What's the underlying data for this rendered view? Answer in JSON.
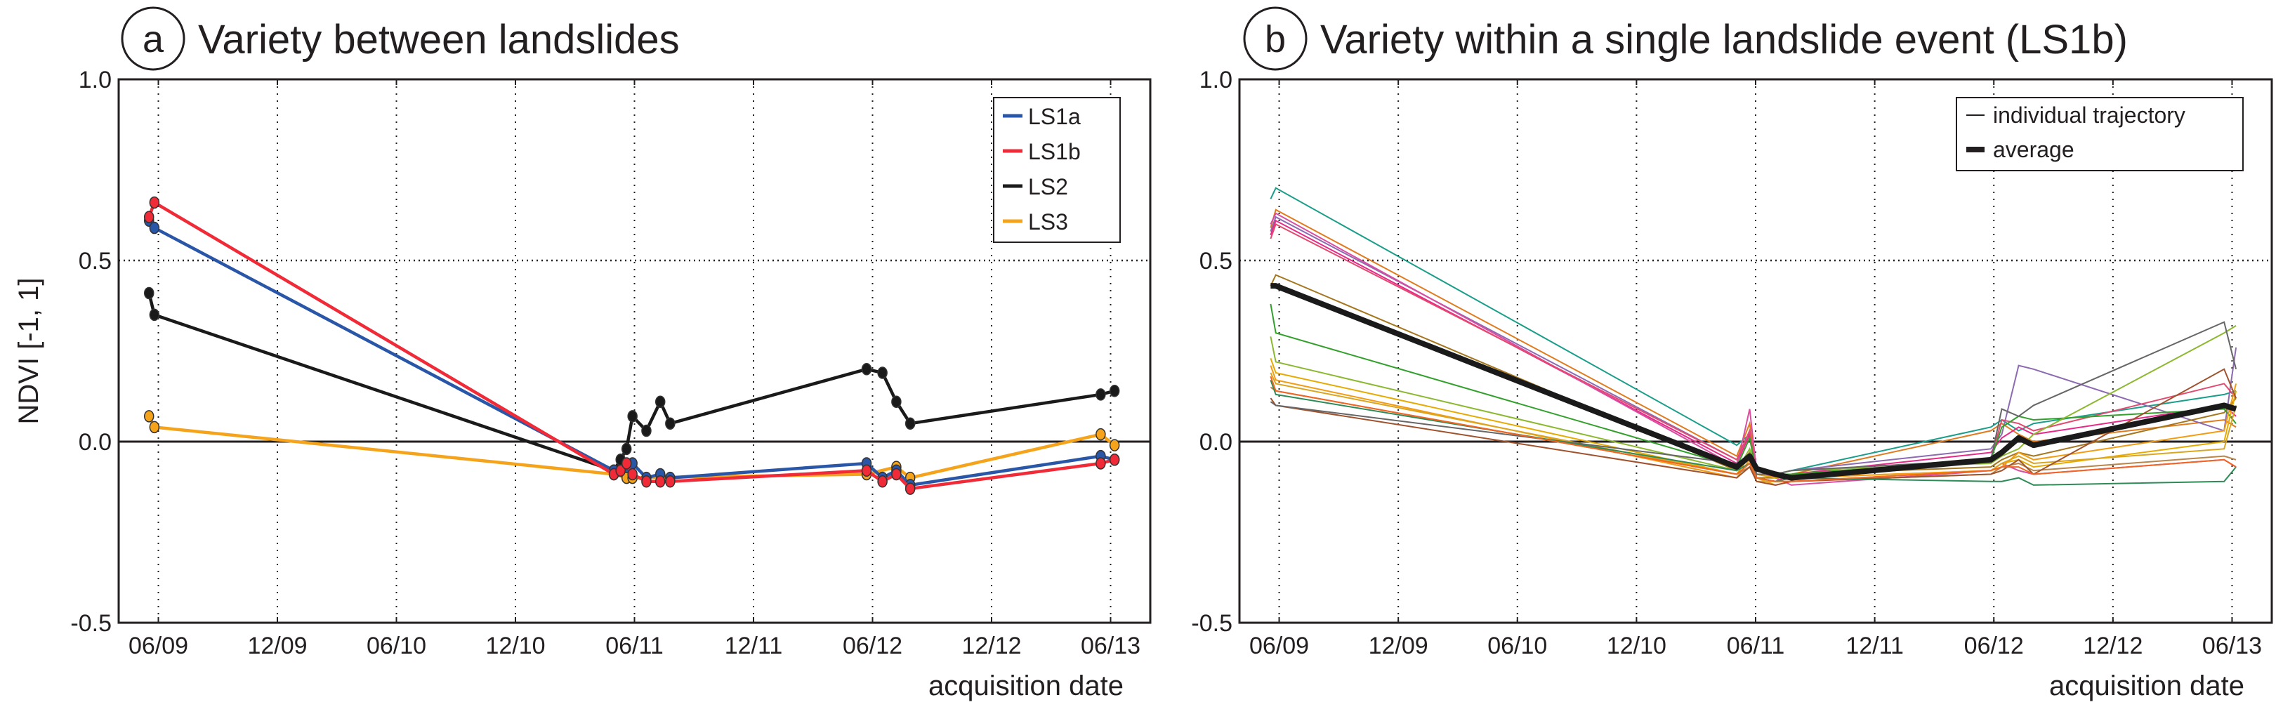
{
  "chart_data": [
    {
      "type": "line",
      "panel_letter": "a",
      "title": "Variety between landslides",
      "xlabel": "acquisition date",
      "ylabel": "NDVI [-1, 1]",
      "x_units": "months since 06/2009",
      "xlim": [
        -2,
        50
      ],
      "ylim": [
        -0.5,
        1.0
      ],
      "yticks": [
        -0.5,
        0.0,
        0.5,
        1.0
      ],
      "ytick_labels": [
        "-0.5",
        "0.0",
        "0.5",
        "1.0"
      ],
      "xticks": [
        0,
        6,
        12,
        18,
        24,
        30,
        36,
        42,
        48
      ],
      "xtick_labels": [
        "06/09",
        "12/09",
        "06/10",
        "12/10",
        "06/11",
        "12/11",
        "06/12",
        "12/12",
        "06/13"
      ],
      "grid": "dotted vertical at x ticks, dotted horizontal at 0.5, solid line at 0",
      "legend_position": "top-right",
      "series": [
        {
          "name": "LS2",
          "color": "#1a1a1a",
          "x": [
            -0.47,
            -0.2,
            22.96,
            23.3,
            23.6,
            23.9,
            24.6,
            25.3,
            25.8,
            35.7,
            36.5,
            37.2,
            37.9,
            47.5,
            48.2
          ],
          "y": [
            0.41,
            0.35,
            -0.08,
            -0.05,
            -0.02,
            0.07,
            0.03,
            0.11,
            0.05,
            0.2,
            0.19,
            0.11,
            0.05,
            0.13,
            0.14
          ]
        },
        {
          "name": "LS3",
          "color": "#f5a31a",
          "x": [
            -0.47,
            -0.2,
            22.96,
            23.6,
            23.9,
            35.7,
            37.2,
            37.9,
            47.5,
            48.2
          ],
          "y": [
            0.07,
            0.04,
            -0.09,
            -0.1,
            -0.1,
            -0.09,
            -0.07,
            -0.1,
            0.02,
            -0.01
          ]
        },
        {
          "name": "LS1a",
          "color": "#2a56a8",
          "x": [
            -0.47,
            -0.2,
            22.96,
            23.6,
            23.9,
            24.6,
            25.3,
            25.8,
            35.7,
            36.5,
            37.2,
            37.9,
            47.5,
            48.2
          ],
          "y": [
            0.61,
            0.59,
            -0.08,
            -0.07,
            -0.06,
            -0.1,
            -0.09,
            -0.1,
            -0.06,
            -0.1,
            -0.08,
            -0.12,
            -0.04,
            -0.05
          ]
        },
        {
          "name": "LS1b",
          "color": "#f02a37",
          "x": [
            -0.47,
            -0.2,
            22.96,
            23.3,
            23.6,
            23.9,
            24.6,
            25.3,
            25.8,
            35.7,
            36.5,
            37.2,
            37.9,
            47.5,
            48.2
          ],
          "y": [
            0.62,
            0.66,
            -0.09,
            -0.08,
            -0.06,
            -0.09,
            -0.11,
            -0.11,
            -0.11,
            -0.08,
            -0.11,
            -0.09,
            -0.13,
            -0.06,
            -0.05
          ]
        }
      ],
      "legend_order": [
        "LS1a",
        "LS1b",
        "LS2",
        "LS3"
      ]
    },
    {
      "type": "line",
      "panel_letter": "b",
      "title": "Variety within a single landslide event (LS1b)",
      "xlabel": "acquisition date",
      "ylabel": "",
      "x_units": "months since 06/2009",
      "xlim": [
        -2,
        50
      ],
      "ylim": [
        -0.5,
        1.0
      ],
      "yticks": [
        -0.5,
        0.0,
        0.5,
        1.0
      ],
      "ytick_labels": [
        "-0.5",
        "0.0",
        "0.5",
        "1.0"
      ],
      "xticks": [
        0,
        6,
        12,
        18,
        24,
        30,
        36,
        42,
        48
      ],
      "xtick_labels": [
        "06/09",
        "12/09",
        "06/10",
        "12/10",
        "06/11",
        "12/11",
        "06/12",
        "12/12",
        "06/13"
      ],
      "legend_position": "top-right",
      "legend": [
        {
          "label": "individual trajectory",
          "style": "thin"
        },
        {
          "label": "average",
          "style": "thick"
        }
      ],
      "x": [
        -0.43,
        -0.17,
        23.05,
        23.7,
        24.05,
        25.0,
        25.8,
        35.85,
        36.4,
        37.25,
        38.0,
        47.6,
        48.2
      ],
      "trajectories": [
        {
          "color": "#1a9e8a",
          "y": [
            0.67,
            0.7,
            -0.01,
            0.02,
            -0.07,
            -0.09,
            -0.08,
            0.04,
            0.06,
            0.03,
            0.05,
            0.13,
            0.14
          ]
        },
        {
          "color": "#e07b1e",
          "y": [
            0.59,
            0.64,
            -0.04,
            0.05,
            -0.08,
            -0.1,
            -0.09,
            0.03,
            0.05,
            0.02,
            0.0,
            0.06,
            0.04
          ]
        },
        {
          "color": "#8c6bb1",
          "y": [
            0.58,
            0.62,
            -0.05,
            0.03,
            -0.09,
            -0.09,
            -0.08,
            -0.02,
            0.02,
            0.21,
            0.2,
            0.03,
            0.26
          ]
        },
        {
          "color": "#e7298a",
          "y": [
            0.57,
            0.61,
            -0.06,
            0.02,
            -0.1,
            -0.11,
            -0.09,
            -0.03,
            0.01,
            0.04,
            0.02,
            0.1,
            0.07
          ]
        },
        {
          "color": "#d94ea0",
          "y": [
            0.6,
            0.63,
            -0.07,
            0.09,
            -0.08,
            -0.1,
            -0.12,
            -0.08,
            -0.06,
            -0.08,
            -0.09,
            -0.05,
            -0.07
          ]
        },
        {
          "color": "#e34a6f",
          "y": [
            0.56,
            0.6,
            -0.05,
            0.03,
            -0.09,
            -0.1,
            -0.1,
            -0.05,
            0.06,
            0.05,
            0.03,
            0.16,
            0.12
          ]
        },
        {
          "color": "#a6761d",
          "y": [
            0.43,
            0.46,
            -0.08,
            -0.03,
            -0.1,
            -0.1,
            -0.09,
            -0.07,
            -0.05,
            -0.03,
            -0.04,
            0.08,
            0.12
          ]
        },
        {
          "color": "#33a02c",
          "y": [
            0.38,
            0.3,
            -0.07,
            0.01,
            -0.09,
            -0.09,
            -0.09,
            -0.05,
            0.04,
            0.07,
            0.06,
            0.09,
            0.05
          ]
        },
        {
          "color": "#8cb82f",
          "y": [
            0.29,
            0.22,
            -0.08,
            -0.02,
            -0.08,
            -0.09,
            -0.08,
            -0.06,
            -0.04,
            -0.02,
            0.02,
            0.3,
            0.32
          ]
        },
        {
          "color": "#e6ab02",
          "y": [
            0.23,
            0.19,
            -0.09,
            -0.04,
            -0.09,
            -0.1,
            -0.1,
            -0.08,
            -0.06,
            -0.05,
            -0.07,
            0.0,
            0.14
          ]
        },
        {
          "color": "#f39c12",
          "y": [
            0.21,
            0.17,
            -0.1,
            -0.05,
            -0.11,
            -0.11,
            -0.1,
            -0.08,
            -0.07,
            -0.03,
            -0.05,
            0.03,
            0.16
          ]
        },
        {
          "color": "#daa520",
          "y": [
            0.19,
            0.16,
            -0.09,
            -0.06,
            -0.1,
            -0.12,
            -0.11,
            -0.08,
            -0.06,
            -0.04,
            -0.06,
            -0.02,
            0.1
          ]
        },
        {
          "color": "#b8864b",
          "y": [
            0.15,
            0.14,
            -0.09,
            -0.07,
            -0.1,
            -0.11,
            -0.11,
            -0.09,
            -0.07,
            -0.06,
            -0.08,
            -0.04,
            -0.05
          ]
        },
        {
          "color": "#a0522d",
          "y": [
            0.12,
            0.1,
            -0.1,
            -0.07,
            -0.11,
            -0.12,
            -0.11,
            -0.09,
            -0.08,
            -0.05,
            -0.09,
            0.2,
            0.12
          ]
        },
        {
          "color": "#666666",
          "y": [
            0.11,
            0.1,
            -0.06,
            -0.04,
            -0.09,
            -0.09,
            -0.08,
            -0.05,
            0.09,
            0.07,
            0.1,
            0.33,
            0.2
          ]
        },
        {
          "color": "#2e8b57",
          "y": [
            0.17,
            0.13,
            -0.08,
            -0.06,
            -0.1,
            -0.11,
            -0.1,
            -0.11,
            -0.11,
            -0.1,
            -0.12,
            -0.11,
            -0.07
          ]
        },
        {
          "color": "#f26522",
          "y": [
            0.18,
            0.14,
            -0.09,
            -0.06,
            -0.1,
            -0.11,
            -0.11,
            -0.08,
            -0.07,
            -0.07,
            -0.09,
            -0.05,
            -0.07
          ]
        }
      ],
      "average": {
        "color": "#1a1a1a",
        "y": [
          0.43,
          0.43,
          -0.07,
          -0.04,
          -0.075,
          -0.09,
          -0.1,
          -0.05,
          -0.03,
          0.01,
          -0.01,
          0.1,
          0.09
        ]
      }
    }
  ]
}
